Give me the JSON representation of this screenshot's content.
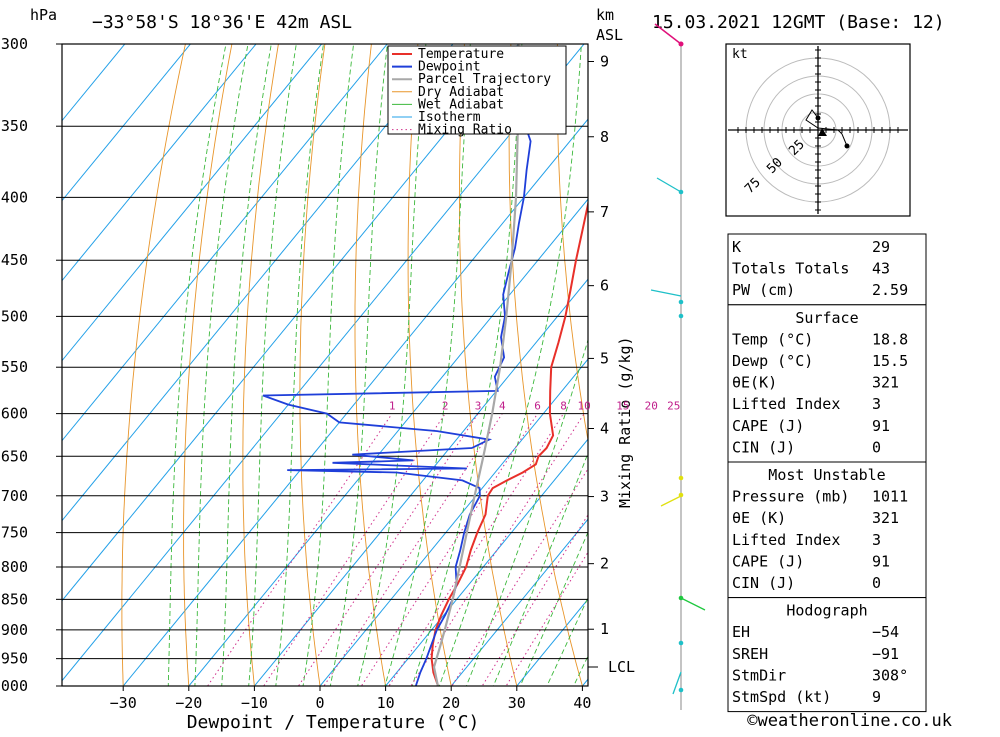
{
  "header": {
    "pressure_unit": "hPa",
    "location": "-33°58'S  18°36'E  42m  ASL",
    "km_unit": "km",
    "asl_label": "ASL",
    "datetime": "15.03.2021  12GMT  (Base: 12)"
  },
  "chart_data": {
    "type": "line",
    "subtype": "skew-T log-P sounding",
    "xlabel": "Dewpoint / Temperature (°C)",
    "ylabel": "hPa",
    "xlim": [
      -40,
      40
    ],
    "ylim": [
      1000,
      300
    ],
    "pressure_ticks": [
      300,
      350,
      400,
      450,
      500,
      550,
      600,
      650,
      700,
      750,
      800,
      850,
      900,
      950,
      1000
    ],
    "x_ticks": [
      -30,
      -20,
      -10,
      0,
      10,
      20,
      30,
      40
    ],
    "y_scale": "log",
    "km_ticks": [
      {
        "label": "9",
        "p": 310
      },
      {
        "label": "8",
        "p": 357
      },
      {
        "label": "7",
        "p": 411
      },
      {
        "label": "6",
        "p": 472
      },
      {
        "label": "5",
        "p": 541
      },
      {
        "label": "4",
        "p": 617
      },
      {
        "label": "3",
        "p": 701
      },
      {
        "label": "2",
        "p": 795
      },
      {
        "label": "1",
        "p": 899
      }
    ],
    "lcl": {
      "label": "LCL",
      "p": 965
    },
    "mixing_ratio_label": "Mixing Ratio (g/kg)",
    "mixing_ratio_values": [
      "1",
      "2",
      "3",
      "4",
      "6",
      "8",
      "10",
      "15",
      "20",
      "25"
    ],
    "legend": [
      "Temperature",
      "Dewpoint",
      "Parcel Trajectory",
      "Dry Adiabat",
      "Wet Adiabat",
      "Isotherm",
      "Mixing Ratio"
    ],
    "legend_position": "top-right",
    "grid": true,
    "series": [
      {
        "name": "Temperature",
        "color": "#e8302a",
        "points": [
          [
            1010,
            18.8
          ],
          [
            1000,
            18.0
          ],
          [
            975,
            15.6
          ],
          [
            950,
            13.6
          ],
          [
            925,
            12.0
          ],
          [
            900,
            10.6
          ],
          [
            875,
            9.6
          ],
          [
            850,
            8.8
          ],
          [
            825,
            8.2
          ],
          [
            800,
            7.4
          ],
          [
            775,
            6.0
          ],
          [
            750,
            4.8
          ],
          [
            725,
            3.8
          ],
          [
            700,
            1.8
          ],
          [
            690,
            1.6
          ],
          [
            680,
            2.8
          ],
          [
            670,
            4.2
          ],
          [
            660,
            5.2
          ],
          [
            650,
            4.6
          ],
          [
            640,
            4.8
          ],
          [
            625,
            4.2
          ],
          [
            600,
            1.0
          ],
          [
            575,
            -1.8
          ],
          [
            550,
            -4.6
          ],
          [
            525,
            -6.6
          ],
          [
            500,
            -8.8
          ],
          [
            475,
            -11.4
          ],
          [
            450,
            -14.2
          ],
          [
            425,
            -17.0
          ],
          [
            400,
            -20.0
          ],
          [
            375,
            -23.4
          ],
          [
            350,
            -27.8
          ],
          [
            325,
            -32.6
          ],
          [
            310,
            -36.4
          ],
          [
            300,
            -39.0
          ]
        ]
      },
      {
        "name": "Dewpoint",
        "color": "#1f3fd9",
        "points": [
          [
            1010,
            15.5
          ],
          [
            1000,
            14.6
          ],
          [
            975,
            13.6
          ],
          [
            950,
            12.8
          ],
          [
            925,
            11.8
          ],
          [
            900,
            10.8
          ],
          [
            875,
            10.2
          ],
          [
            850,
            9.4
          ],
          [
            825,
            8.0
          ],
          [
            800,
            5.8
          ],
          [
            775,
            4.4
          ],
          [
            750,
            2.8
          ],
          [
            725,
            1.4
          ],
          [
            700,
            0.6
          ],
          [
            690,
            -0.4
          ],
          [
            680,
            -4.0
          ],
          [
            670,
            -15.0
          ],
          [
            667,
            -32.0
          ],
          [
            665,
            -4.8
          ],
          [
            658,
            -26.0
          ],
          [
            655,
            -14.0
          ],
          [
            648,
            -24.0
          ],
          [
            640,
            -6.6
          ],
          [
            630,
            -5.0
          ],
          [
            620,
            -14.0
          ],
          [
            610,
            -30.0
          ],
          [
            600,
            -33.0
          ],
          [
            590,
            -40.0
          ],
          [
            580,
            -45.0
          ],
          [
            575,
            -9.8
          ],
          [
            560,
            -12.0
          ],
          [
            540,
            -13.0
          ],
          [
            520,
            -16.0
          ],
          [
            500,
            -18.0
          ],
          [
            480,
            -21.0
          ],
          [
            460,
            -23.0
          ],
          [
            440,
            -25.0
          ],
          [
            420,
            -27.5
          ],
          [
            400,
            -30.0
          ],
          [
            380,
            -33.0
          ],
          [
            360,
            -36.0
          ],
          [
            345,
            -40.0
          ],
          [
            330,
            -44.0
          ],
          [
            310,
            -48.0
          ],
          [
            300,
            -50.0
          ]
        ]
      },
      {
        "name": "Parcel Trajectory",
        "color": "#a8a8a8",
        "points": [
          [
            1010,
            18.8
          ],
          [
            965,
            15.0
          ],
          [
            925,
            13.2
          ],
          [
            900,
            12.0
          ],
          [
            850,
            9.4
          ],
          [
            800,
            6.4
          ],
          [
            750,
            3.2
          ],
          [
            700,
            -0.2
          ],
          [
            650,
            -3.8
          ],
          [
            600,
            -7.8
          ],
          [
            550,
            -12.4
          ],
          [
            500,
            -17.8
          ],
          [
            450,
            -24.0
          ],
          [
            400,
            -31.2
          ],
          [
            350,
            -39.8
          ],
          [
            300,
            -50.0
          ]
        ]
      }
    ]
  },
  "hodograph": {
    "unit": "kt",
    "rings": [
      "25",
      "50",
      "75"
    ],
    "stmdir": 308,
    "stmspd": 9
  },
  "wind_profile_colors": {
    "upper": "#e0107a",
    "mid": "#1ec0c8",
    "low": "#e0e010",
    "lowest": "#20c840"
  },
  "indices": {
    "basic": [
      {
        "label": "K",
        "value": "29"
      },
      {
        "label": "Totals Totals",
        "value": "43"
      },
      {
        "label": "PW (cm)",
        "value": "2.59"
      }
    ],
    "surface_title": "Surface",
    "surface": [
      {
        "label": "Temp (°C)",
        "value": "18.8"
      },
      {
        "label": "Dewp (°C)",
        "value": "15.5"
      },
      {
        "label": "θE(K)",
        "value": "321"
      },
      {
        "label": "Lifted Index",
        "value": "3"
      },
      {
        "label": "CAPE (J)",
        "value": "91"
      },
      {
        "label": "CIN (J)",
        "value": "0"
      }
    ],
    "mu_title": "Most Unstable",
    "mu": [
      {
        "label": "Pressure (mb)",
        "value": "1011"
      },
      {
        "label": "θE (K)",
        "value": "321"
      },
      {
        "label": "Lifted Index",
        "value": "3"
      },
      {
        "label": "CAPE (J)",
        "value": "91"
      },
      {
        "label": "CIN (J)",
        "value": "0"
      }
    ],
    "hodo_title": "Hodograph",
    "hodo": [
      {
        "label": "EH",
        "value": "-54"
      },
      {
        "label": "SREH",
        "value": "-91"
      },
      {
        "label": "StmDir",
        "value": "308°"
      },
      {
        "label": "StmSpd (kt)",
        "value": "9"
      }
    ]
  },
  "credit": "©weatheronline.co.uk"
}
